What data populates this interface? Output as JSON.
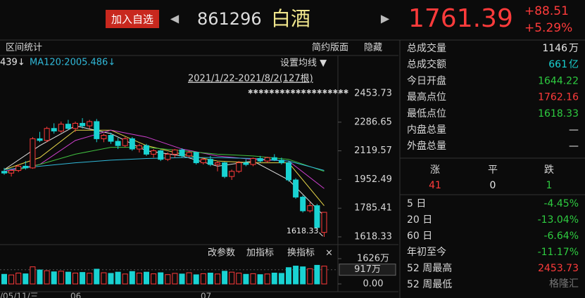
{
  "header": {
    "button": "加入自选",
    "prev": "◀",
    "code": "861296",
    "name": "白酒",
    "next": "▶",
    "price": "1761.39",
    "change": "+88.51",
    "change_pct": "+5.29%"
  },
  "toolbar": {
    "left": "区间统计",
    "layout": "简约版面",
    "hide": "隐藏"
  },
  "chart": {
    "ma_labels": [
      "439↓",
      "MA120:2005.486↓"
    ],
    "ma_setting": "设置均线 ▼",
    "range": "2021/1/22-2021/8/2(127根)",
    "stars": "✱✱✱✱✱✱✱✱✱✱✱✱✱✱✱✱✱✱✱",
    "ylim": [
      1618.33,
      2453.73
    ],
    "yticks": [
      2453.73,
      2286.65,
      2119.57,
      1952.49,
      1785.41,
      1618.33
    ],
    "up_color": "#ff3b3b",
    "down_color": "#19d2d2",
    "candles": [
      [
        2000,
        2020,
        1980,
        1990
      ],
      [
        1990,
        2010,
        1970,
        2005
      ],
      [
        2005,
        2040,
        1995,
        2030
      ],
      [
        2030,
        2060,
        2010,
        2020
      ],
      [
        2020,
        2200,
        2015,
        2190
      ],
      [
        2190,
        2230,
        2170,
        2180
      ],
      [
        2180,
        2260,
        2170,
        2250
      ],
      [
        2250,
        2280,
        2220,
        2235
      ],
      [
        2235,
        2290,
        2225,
        2275
      ],
      [
        2275,
        2300,
        2240,
        2250
      ],
      [
        2250,
        2290,
        2230,
        2280
      ],
      [
        2280,
        2310,
        2250,
        2265
      ],
      [
        2265,
        2300,
        2250,
        2290
      ],
      [
        2290,
        2305,
        2170,
        2190
      ],
      [
        2190,
        2220,
        2170,
        2210
      ],
      [
        2210,
        2225,
        2160,
        2175
      ],
      [
        2175,
        2195,
        2130,
        2150
      ],
      [
        2150,
        2200,
        2140,
        2190
      ],
      [
        2190,
        2200,
        2120,
        2130
      ],
      [
        2130,
        2160,
        2110,
        2150
      ],
      [
        2150,
        2160,
        2090,
        2100
      ],
      [
        2100,
        2130,
        2080,
        2120
      ],
      [
        2120,
        2125,
        2060,
        2070
      ],
      [
        2070,
        2110,
        2060,
        2100
      ],
      [
        2100,
        2130,
        2080,
        2125
      ],
      [
        2125,
        2135,
        2080,
        2090
      ],
      [
        2090,
        2120,
        2080,
        2110
      ],
      [
        2110,
        2115,
        2040,
        2050
      ],
      [
        2050,
        2080,
        2040,
        2070
      ],
      [
        2070,
        2090,
        2030,
        2040
      ],
      [
        2040,
        2060,
        2000,
        2050
      ],
      [
        2050,
        2055,
        1960,
        1970
      ],
      [
        1970,
        2010,
        1950,
        2000
      ],
      [
        2000,
        2060,
        1990,
        2050
      ],
      [
        2050,
        2070,
        2030,
        2040
      ],
      [
        2040,
        2080,
        2030,
        2075
      ],
      [
        2075,
        2090,
        2050,
        2060
      ],
      [
        2060,
        2085,
        2050,
        2080
      ],
      [
        2080,
        2100,
        2060,
        2065
      ],
      [
        2065,
        2080,
        2040,
        2050
      ],
      [
        2050,
        2060,
        1940,
        1950
      ],
      [
        1950,
        1960,
        1840,
        1850
      ],
      [
        1850,
        1860,
        1760,
        1770
      ],
      [
        1770,
        1820,
        1760,
        1800
      ],
      [
        1800,
        1810,
        1660,
        1672.88
      ],
      [
        1644.22,
        1762.16,
        1618.33,
        1761.39
      ]
    ],
    "ma_index": [
      0,
      5,
      10,
      15,
      20,
      25,
      30,
      35,
      40,
      45
    ],
    "ma_lines": [
      {
        "color": "#e0e0e0",
        "values": [
          2010,
          2150,
          2265,
          2220,
          2120,
          2090,
          2030,
          2060,
          1950,
          1740
        ]
      },
      {
        "color": "#e8d84a",
        "values": [
          2010,
          2080,
          2240,
          2240,
          2150,
          2100,
          2060,
          2050,
          2050,
          1800
        ]
      },
      {
        "color": "#d040d0",
        "values": [
          2000,
          2040,
          2180,
          2240,
          2200,
          2130,
          2090,
          2070,
          2060,
          1900
        ]
      },
      {
        "color": "#40c040",
        "values": [
          1990,
          2040,
          2100,
          2140,
          2140,
          2120,
          2100,
          2090,
          2070,
          2000
        ]
      },
      {
        "color": "#30b8d8",
        "values": [
          2010,
          2030,
          2050,
          2065,
          2075,
          2080,
          2080,
          2075,
          2060,
          2005.486
        ]
      }
    ],
    "low_annotation": "1618.33",
    "volume": {
      "toolbar": [
        "改参数",
        "加指标",
        "换指标",
        "×"
      ],
      "ylim": [
        0,
        1626
      ],
      "yticks": [
        {
          "value": 1626,
          "label": "1626万"
        },
        {
          "value": 0,
          "label": "0.00"
        }
      ],
      "marker": {
        "value": 917,
        "label": "917万"
      },
      "values": [
        620,
        580,
        700,
        650,
        1100,
        900,
        850,
        780,
        820,
        760,
        700,
        740,
        690,
        950,
        720,
        680,
        760,
        640,
        800,
        700,
        760,
        650,
        720,
        600,
        680,
        640,
        720,
        590,
        660,
        700,
        640,
        820,
        760,
        700,
        620,
        660,
        600,
        640,
        700,
        680,
        1050,
        1150,
        1100,
        980,
        1200,
        1146
      ]
    },
    "xlabels": [
      "/05/11/三",
      "06",
      "07"
    ]
  },
  "stats": {
    "rows": [
      {
        "label": "总成交量",
        "value": "1146",
        "unit": "万",
        "color": "#e8e8e8"
      },
      {
        "label": "总成交额",
        "value": "661",
        "unit": "亿",
        "color": "#19d2d2"
      },
      {
        "label": "今日开盘",
        "value": "1644.22",
        "color": "#2ecc40"
      },
      {
        "label": "最高点位",
        "value": "1762.16",
        "color": "#ff3b3b"
      },
      {
        "label": "最低点位",
        "value": "1618.33",
        "color": "#2ecc40"
      },
      {
        "label": "内盘总量",
        "value": "—",
        "color": "#e8e8e8"
      },
      {
        "label": "外盘总量",
        "value": "—",
        "color": "#e8e8e8"
      }
    ]
  },
  "breadth": {
    "labels": [
      "涨",
      "平",
      "跌"
    ],
    "values": [
      "41",
      "0",
      "1"
    ],
    "colors": [
      "#ff3b3b",
      "#e8e8e8",
      "#2ecc40"
    ]
  },
  "returns": {
    "rows": [
      {
        "label": "5 日",
        "value": "-4.45%",
        "color": "#2ecc40"
      },
      {
        "label": "20 日",
        "value": "-13.04%",
        "color": "#2ecc40"
      },
      {
        "label": "60 日",
        "value": "-6.64%",
        "color": "#2ecc40"
      },
      {
        "label": "年初至今",
        "value": "-11.17%",
        "color": "#2ecc40"
      },
      {
        "label": "52 周最高",
        "value": "2453.73",
        "color": "#ff3b3b"
      },
      {
        "label": "52 周最低",
        "value": "",
        "color": "#2ecc40"
      }
    ]
  },
  "watermark": "格隆汇"
}
